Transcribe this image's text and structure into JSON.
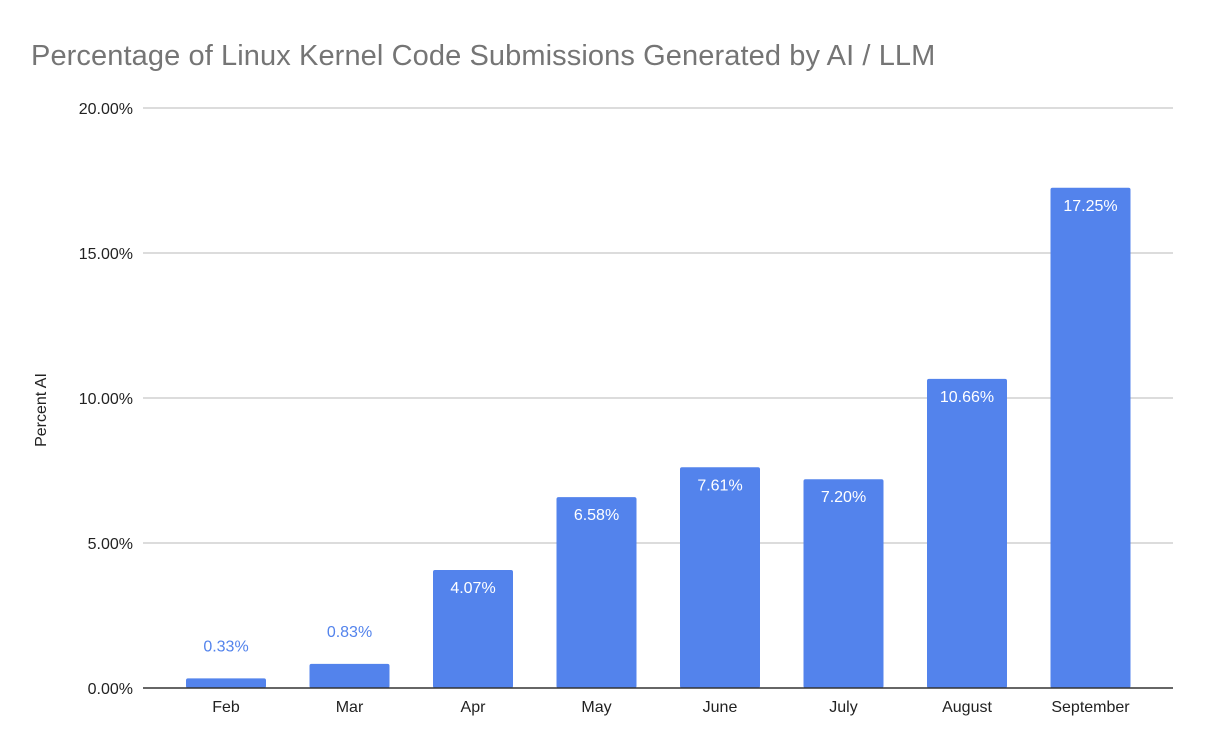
{
  "chart_data": {
    "type": "bar",
    "title": "Percentage of Linux Kernel Code Submissions Generated by AI / LLM",
    "xlabel": "",
    "ylabel": "Percent AI",
    "categories": [
      "Feb",
      "Mar",
      "Apr",
      "May",
      "June",
      "July",
      "August",
      "September"
    ],
    "values": [
      0.33,
      0.83,
      4.07,
      6.58,
      7.61,
      7.2,
      10.66,
      17.25
    ],
    "data_labels": [
      "0.33%",
      "0.83%",
      "4.07%",
      "6.58%",
      "7.61%",
      "7.20%",
      "10.66%",
      "17.25%"
    ],
    "ylim": [
      0,
      20
    ],
    "yticks": [
      0,
      5,
      10,
      15,
      20
    ],
    "ytick_labels": [
      "0.00%",
      "5.00%",
      "10.00%",
      "15.00%",
      "20.00%"
    ],
    "grid": true,
    "legend": "none",
    "colors": {
      "bar": "#5383EC",
      "label_inside": "#ffffff",
      "label_outside": "#5383EC",
      "title": "#757575",
      "axis_text": "#222222",
      "grid": "#d0d0d0",
      "baseline": "#333333"
    }
  }
}
